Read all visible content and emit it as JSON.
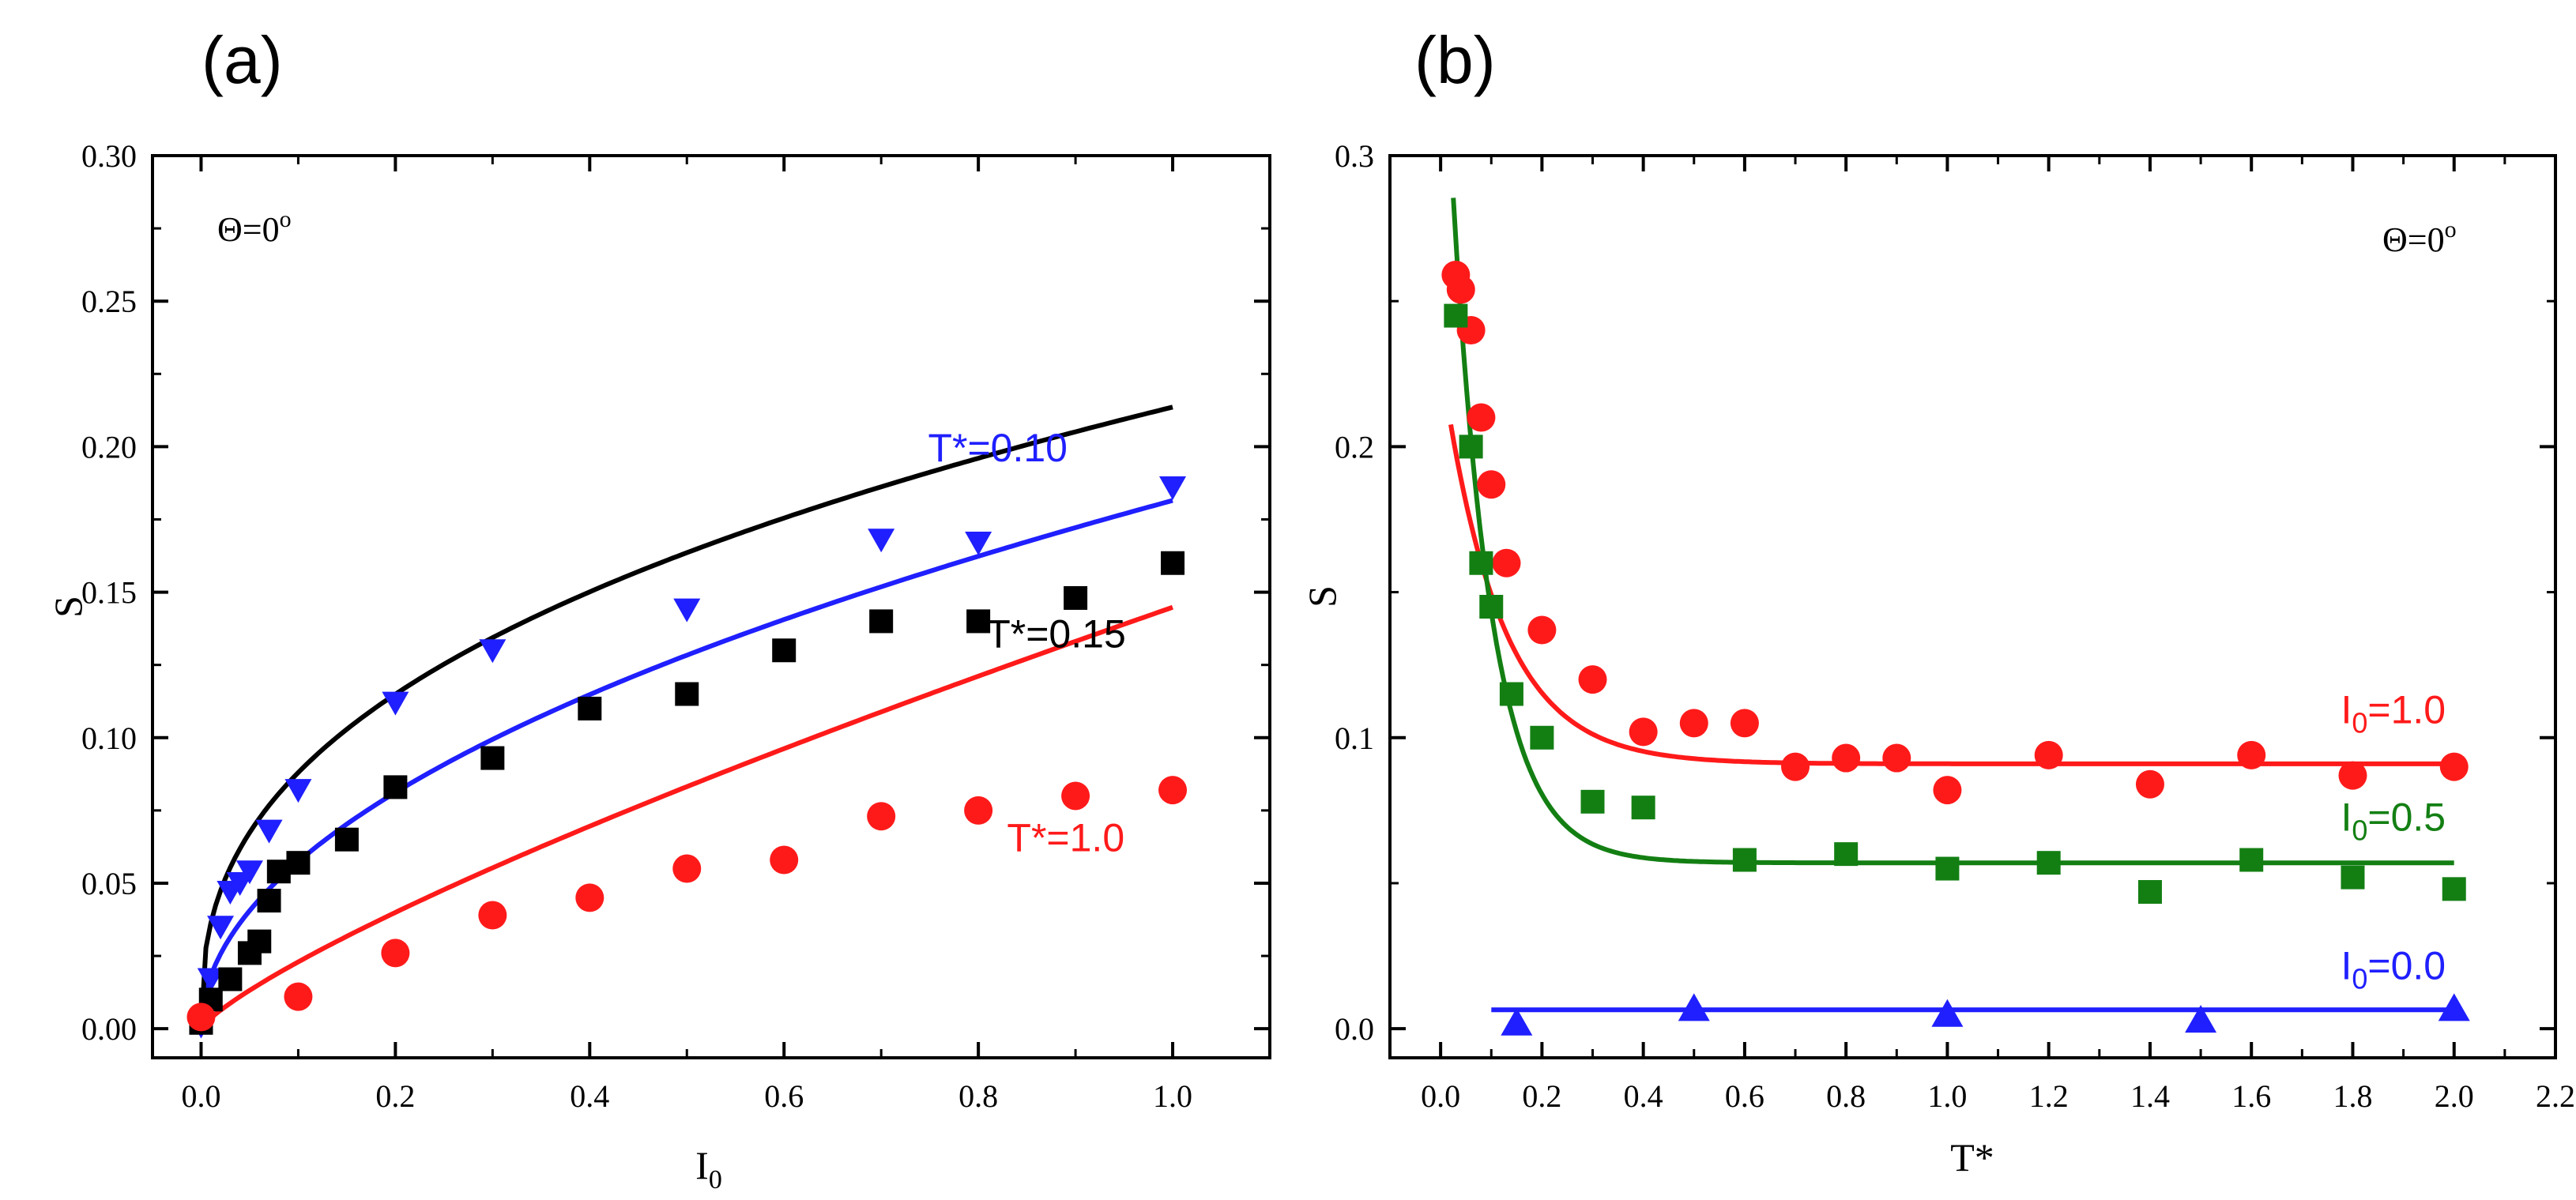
{
  "chart_data": [
    {
      "type": "scatter",
      "panel_label": "(a)",
      "xlabel": "I",
      "xlabel_sub": "0",
      "ylabel": "S",
      "xlim": [
        -0.05,
        1.1
      ],
      "ylim": [
        -0.01,
        0.3
      ],
      "xticks": [
        0.0,
        0.2,
        0.4,
        0.6,
        0.8,
        1.0
      ],
      "xtick_labels": [
        "0.0",
        "0.2",
        "0.4",
        "0.6",
        "0.8",
        "1.0"
      ],
      "yticks": [
        0.0,
        0.05,
        0.1,
        0.15,
        0.2,
        0.25,
        0.3
      ],
      "ytick_labels": [
        "0.00",
        "0.05",
        "0.10",
        "0.15",
        "0.20",
        "0.25",
        "0.30"
      ],
      "annotation": {
        "text": "Θ=0",
        "sup": "o",
        "position": "top-left"
      },
      "series": [
        {
          "name": "T*=0.10",
          "color": "#1f1fff",
          "marker": "triangle-down",
          "label": {
            "text": "T*=0.10",
            "x": 0.82,
            "y": 0.195
          },
          "x": [
            0.0,
            0.01,
            0.02,
            0.03,
            0.04,
            0.05,
            0.07,
            0.1,
            0.2,
            0.3,
            0.5,
            0.7,
            0.8,
            1.0
          ],
          "values": [
            0.001,
            0.017,
            0.035,
            0.047,
            0.05,
            0.054,
            0.068,
            0.082,
            0.112,
            0.13,
            0.144,
            0.168,
            0.167,
            0.186
          ],
          "fit": {
            "a": 0.1815,
            "b": 0.5
          }
        },
        {
          "name": "T*=0.15",
          "color": "#000000",
          "marker": "square",
          "label": {
            "text": "T*=0.15",
            "x": 0.88,
            "y": 0.131
          },
          "x": [
            0.0,
            0.01,
            0.03,
            0.05,
            0.06,
            0.07,
            0.08,
            0.1,
            0.15,
            0.2,
            0.3,
            0.4,
            0.5,
            0.6,
            0.7,
            0.8,
            0.9,
            1.0
          ],
          "values": [
            0.002,
            0.01,
            0.017,
            0.026,
            0.03,
            0.044,
            0.054,
            0.057,
            0.065,
            0.083,
            0.093,
            0.11,
            0.115,
            0.13,
            0.14,
            0.14,
            0.148,
            0.16
          ],
          "fit": {
            "a": 0.2136,
            "b": 0.385
          }
        },
        {
          "name": "T*=1.0",
          "color": "#ff1a1a",
          "marker": "circle",
          "label": {
            "text": "T*=1.0",
            "x": 0.89,
            "y": 0.061
          },
          "x": [
            0.0,
            0.1,
            0.2,
            0.3,
            0.4,
            0.5,
            0.6,
            0.7,
            0.8,
            0.9,
            1.0
          ],
          "values": [
            0.004,
            0.011,
            0.026,
            0.039,
            0.045,
            0.055,
            0.058,
            0.073,
            0.075,
            0.08,
            0.082
          ],
          "fit": {
            "a": 0.1448,
            "b": 0.8
          }
        }
      ]
    },
    {
      "type": "scatter",
      "panel_label": "(b)",
      "xlabel": "T*",
      "ylabel": "S",
      "xlim": [
        -0.1,
        2.2
      ],
      "ylim": [
        -0.01,
        0.3
      ],
      "xticks": [
        0.0,
        0.2,
        0.4,
        0.6,
        0.8,
        1.0,
        1.2,
        1.4,
        1.6,
        1.8,
        2.0,
        2.2
      ],
      "xtick_labels": [
        "0.0",
        "0.2",
        "0.4",
        "0.6",
        "0.8",
        "1.0",
        "1.2",
        "1.4",
        "1.6",
        "1.8",
        "2.0",
        "2.2"
      ],
      "yticks": [
        0.0,
        0.1,
        0.2,
        0.3
      ],
      "ytick_labels": [
        "0.0",
        "0.1",
        "0.2",
        "0.3"
      ],
      "annotation": {
        "text": "Θ=0",
        "sup": "o",
        "position": "top-right"
      },
      "series": [
        {
          "name": "I0=1.0",
          "color": "#ff1a1a",
          "marker": "circle",
          "label": {
            "text": "I",
            "sub": "0",
            "rest": "=1.0",
            "x": 1.88,
            "y": 0.105
          },
          "x": [
            0.03,
            0.04,
            0.06,
            0.08,
            0.1,
            0.13,
            0.2,
            0.3,
            0.4,
            0.5,
            0.6,
            0.7,
            0.8,
            0.9,
            1.0,
            1.2,
            1.4,
            1.6,
            1.8,
            2.0
          ],
          "values": [
            0.259,
            0.254,
            0.24,
            0.21,
            0.187,
            0.16,
            0.137,
            0.12,
            0.102,
            0.105,
            0.105,
            0.09,
            0.093,
            0.093,
            0.082,
            0.094,
            0.084,
            0.094,
            0.087,
            0.09
          ],
          "fit": {
            "y0": 0.091,
            "A": 0.255,
            "t": 0.115,
            "x0": -0.07,
            "xmin": 0.02,
            "xmax": 2.0
          }
        },
        {
          "name": "I0=0.5",
          "color": "#137f13",
          "marker": "square",
          "label": {
            "text": "I",
            "sub": "0",
            "rest": "=0.5",
            "x": 1.88,
            "y": 0.068
          },
          "x": [
            0.03,
            0.06,
            0.08,
            0.1,
            0.14,
            0.2,
            0.3,
            0.4,
            0.6,
            0.8,
            1.0,
            1.2,
            1.4,
            1.6,
            1.8,
            2.0
          ],
          "values": [
            0.245,
            0.2,
            0.16,
            0.145,
            0.115,
            0.1,
            0.078,
            0.076,
            0.058,
            0.06,
            0.055,
            0.057,
            0.047,
            0.058,
            0.052,
            0.048
          ],
          "fit": {
            "y0": 0.057,
            "A": 0.36,
            "t": 0.077,
            "x0": -0.01,
            "xmin": 0.025,
            "xmax": 2.0
          }
        },
        {
          "name": "I0=0.0",
          "color": "#1f1fff",
          "marker": "triangle-up",
          "label": {
            "text": "I",
            "sub": "0",
            "rest": "=0.0",
            "x": 1.88,
            "y": 0.017
          },
          "x": [
            0.15,
            0.5,
            1.0,
            1.5,
            2.0
          ],
          "values": [
            0.002,
            0.007,
            0.005,
            0.003,
            0.007
          ],
          "fit": {
            "y0": 0.0065,
            "A": 0,
            "t": 1,
            "x0": 0,
            "xmin": 0.1,
            "xmax": 2.0
          }
        }
      ]
    }
  ]
}
